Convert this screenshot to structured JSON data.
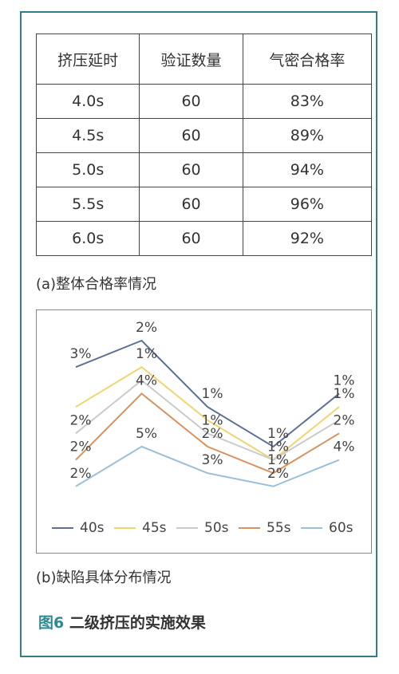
{
  "table": {
    "header": [
      "挤压延时",
      "验证数量",
      "气密合格率"
    ],
    "rows": [
      [
        "4.0s",
        "60",
        "83%"
      ],
      [
        "4.5s",
        "60",
        "89%"
      ],
      [
        "5.0s",
        "60",
        "94%"
      ],
      [
        "5.5s",
        "60",
        "96%"
      ],
      [
        "6.0s",
        "60",
        "92%"
      ]
    ]
  },
  "caption_a": "(a)整体合格率情况",
  "chart_data": {
    "type": "line",
    "stacked": true,
    "categories": [
      null,
      null,
      null,
      null,
      null
    ],
    "series": [
      {
        "name": "40s",
        "color": "#5b6f98",
        "values": [
          3,
          2,
          1,
          1,
          1
        ],
        "value_labels": [
          "3%",
          "2%",
          "1%",
          "1%",
          "1%"
        ]
      },
      {
        "name": "45s",
        "color": "#f2d46e",
        "values": [
          2,
          1,
          1,
          0,
          1
        ],
        "value_labels": [
          null,
          "1%",
          null,
          null,
          "1%"
        ]
      },
      {
        "name": "50s",
        "color": "#cbcbcb",
        "values": [
          2,
          1,
          1,
          1,
          1
        ],
        "value_labels": [
          "2%",
          null,
          "1%",
          "1%",
          null
        ]
      },
      {
        "name": "55s",
        "color": "#d9925c",
        "values": [
          2,
          4,
          2,
          1,
          2
        ],
        "value_labels": [
          "2%",
          "4%",
          "2%",
          "1%",
          "2%"
        ]
      },
      {
        "name": "60s",
        "color": "#9cc0d8",
        "values": [
          2,
          5,
          3,
          2,
          4
        ],
        "value_labels": [
          "2%",
          "5%",
          "3%",
          "2%",
          "4%"
        ]
      }
    ]
  },
  "caption_b": "(b)缺陷具体分布情况",
  "figure": {
    "label": "图6",
    "title": "二级挤压的实施效果"
  }
}
